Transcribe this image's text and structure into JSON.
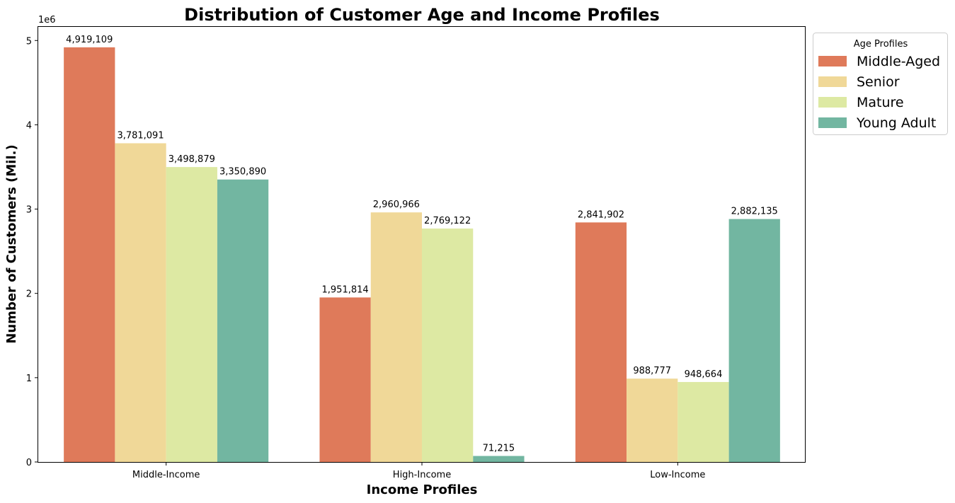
{
  "chart_data": {
    "type": "bar",
    "title": "Distribution of Customer Age and Income Profiles",
    "xlabel": "Income Profiles",
    "ylabel": "Number of Customers (Mil.)",
    "y_offset_label": "1e6",
    "categories": [
      "Middle-Income",
      "High-Income",
      "Low-Income"
    ],
    "ylim": [
      0,
      5170000
    ],
    "yticks": [
      0,
      1000000,
      2000000,
      3000000,
      4000000,
      5000000
    ],
    "ytick_labels": [
      "0",
      "1",
      "2",
      "3",
      "4",
      "5"
    ],
    "legend_title": "Age Profiles",
    "legend_position": "outside-top-right",
    "grid": false,
    "series": [
      {
        "name": "Middle-Aged",
        "color": "#df7a5a",
        "values": [
          4919109,
          1951814,
          2841902
        ],
        "labels": [
          "4,919,109",
          "1,951,814",
          "2,841,902"
        ]
      },
      {
        "name": "Senior",
        "color": "#f0d898",
        "values": [
          3781091,
          2960966,
          988777
        ],
        "labels": [
          "3,781,091",
          "2,960,966",
          "988,777"
        ]
      },
      {
        "name": "Mature",
        "color": "#dde9a3",
        "values": [
          3498879,
          2769122,
          948664
        ],
        "labels": [
          "3,498,879",
          "2,769,122",
          "948,664"
        ]
      },
      {
        "name": "Young Adult",
        "color": "#72b6a1",
        "values": [
          3350890,
          71215,
          2882135
        ],
        "labels": [
          "3,350,890",
          "71,215",
          "2,882,135"
        ]
      }
    ]
  }
}
